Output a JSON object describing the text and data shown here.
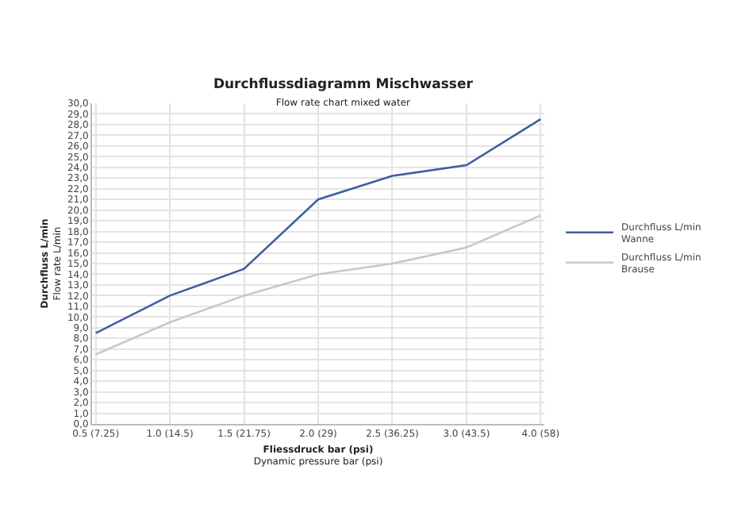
{
  "chart_data": {
    "type": "line",
    "title": "Durchflussdiagramm Mischwasser",
    "subtitle": "Flow rate chart mixed water",
    "xlabel": "Fliessdruck bar (psi)\nDynamic pressure bar (psi)",
    "ylabel": "Durchfluss L/min\nFlow rate L/min",
    "categories": [
      "0.5 (7.25)",
      "1.0 (14.5)",
      "1.5 (21.75)",
      "2.0 (29)",
      "2.5 (36.25)",
      "3.0 (43.5)",
      "4.0 (58)"
    ],
    "series": [
      {
        "name": "Durchfluss L/min\nWanne",
        "color": "#3f5f9f",
        "values": [
          8.5,
          12.0,
          14.5,
          21.0,
          23.2,
          24.2,
          28.5
        ]
      },
      {
        "name": "Durchfluss L/min\nBrause",
        "color": "#c8c8c8",
        "values": [
          6.5,
          9.5,
          12.0,
          14.0,
          15.0,
          16.5,
          19.5
        ]
      }
    ],
    "ylim": [
      0,
      30
    ],
    "yticks": [
      {
        "value": 0,
        "label": "0,0"
      },
      {
        "value": 1,
        "label": "1,0"
      },
      {
        "value": 2,
        "label": "2,0"
      },
      {
        "value": 3,
        "label": "3,0"
      },
      {
        "value": 4,
        "label": "4,0"
      },
      {
        "value": 5,
        "label": "5,0"
      },
      {
        "value": 6,
        "label": "6,0"
      },
      {
        "value": 7,
        "label": "7,0"
      },
      {
        "value": 8,
        "label": "8,0"
      },
      {
        "value": 9,
        "label": "9,0"
      },
      {
        "value": 10,
        "label": "10,0"
      },
      {
        "value": 11,
        "label": "11,0"
      },
      {
        "value": 12,
        "label": "12,0"
      },
      {
        "value": 13,
        "label": "13,0"
      },
      {
        "value": 14,
        "label": "14,0"
      },
      {
        "value": 15,
        "label": "15,0"
      },
      {
        "value": 16,
        "label": "16,0"
      },
      {
        "value": 17,
        "label": "17,0"
      },
      {
        "value": 18,
        "label": "18,0"
      },
      {
        "value": 19,
        "label": "19,0"
      },
      {
        "value": 20,
        "label": "20,0"
      },
      {
        "value": 21,
        "label": "21,0"
      },
      {
        "value": 22,
        "label": "22,0"
      },
      {
        "value": 23,
        "label": "23,0"
      },
      {
        "value": 24,
        "label": "24,0"
      },
      {
        "value": 25,
        "label": "25,0"
      },
      {
        "value": 26,
        "label": "26,0"
      },
      {
        "value": 27,
        "label": "27,0"
      },
      {
        "value": 28,
        "label": "28,0"
      },
      {
        "value": 29,
        "label": "29,0"
      },
      {
        "value": 30,
        "label": "30,0"
      }
    ],
    "grid": true,
    "legend": "right",
    "marker": "none",
    "line_style": "solid"
  }
}
